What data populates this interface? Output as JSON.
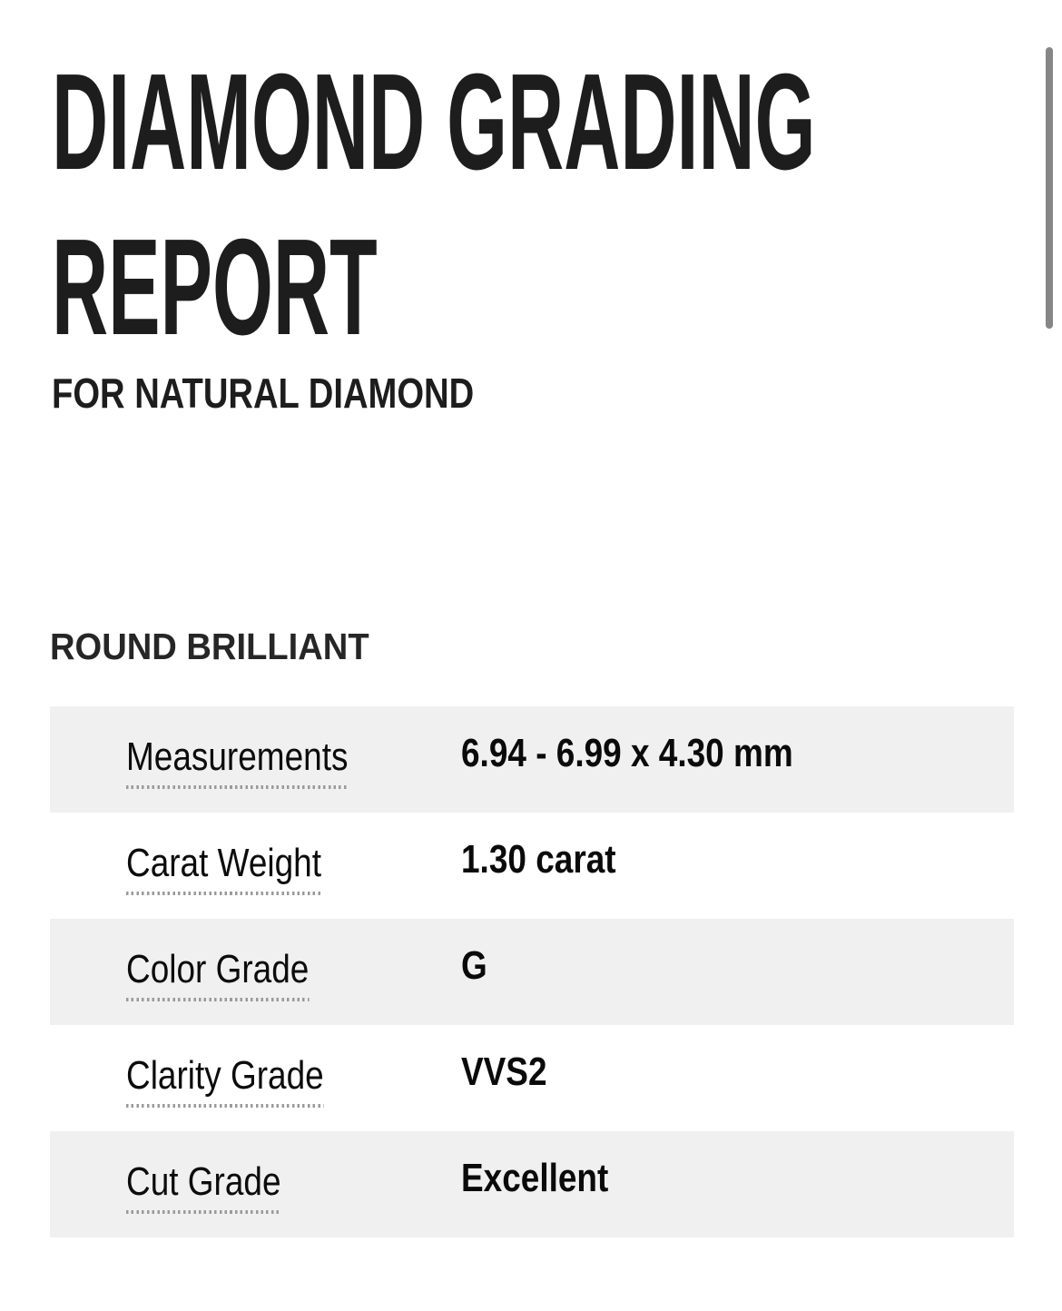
{
  "page": {
    "title": "DIAMOND GRADING REPORT",
    "subtitle": "FOR NATURAL DIAMOND",
    "section_heading": "ROUND BRILLIANT"
  },
  "spec_table": {
    "rows": [
      {
        "label": "Measurements",
        "value": "6.94 - 6.99 x 4.30 mm"
      },
      {
        "label": "Carat Weight",
        "value": "1.30 carat"
      },
      {
        "label": "Color Grade",
        "value": "G"
      },
      {
        "label": "Clarity Grade",
        "value": "VVS2"
      },
      {
        "label": "Cut Grade",
        "value": "Excellent"
      }
    ]
  },
  "colors": {
    "page_background": "#ffffff",
    "row_stripe_background": "#f0f0f0",
    "dotted_underline": "#9a9a9a",
    "text_primary": "#1d1d1d",
    "scrollbar_thumb": "#868686"
  },
  "scrollbar": {
    "visible": true
  }
}
